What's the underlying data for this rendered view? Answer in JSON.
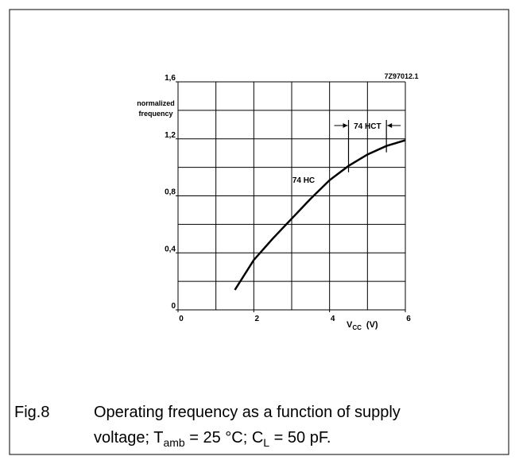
{
  "chart_data": {
    "type": "line",
    "code": "7Z97012.1",
    "y_label_lines": [
      "normalized",
      "frequency"
    ],
    "x_label": {
      "main": "V",
      "sub": "CC",
      "unit": "(V)"
    },
    "x": [
      1.5,
      2,
      2.5,
      3,
      3.5,
      4,
      4.5,
      5,
      5.5,
      6
    ],
    "series": [
      {
        "name": "74 HC",
        "color": "#000000",
        "values": [
          0.14,
          0.35,
          0.5,
          0.64,
          0.78,
          0.91,
          1.01,
          1.09,
          1.15,
          1.19
        ]
      }
    ],
    "hct": {
      "name": "74 HCT",
      "range": [
        4.5,
        5.5
      ]
    },
    "xlim": [
      0,
      6
    ],
    "ylim": [
      0,
      1.6
    ],
    "xticks": [
      0,
      2,
      4,
      6
    ],
    "yticks": [
      0,
      {
        "value": 0.4,
        "label": "0,4"
      },
      {
        "value": 0.8,
        "label": "0,8"
      },
      {
        "value": 1.2,
        "label": "1,2"
      },
      {
        "value": 1.6,
        "label": "1,6"
      }
    ],
    "grid_step": {
      "x": 1,
      "y": 0.2
    },
    "grid": true,
    "caption": {
      "number": "Fig.8",
      "line1": "Operating frequency as a function of supply",
      "line2": [
        "voltage; T",
        "amb",
        " = 25 °C; C",
        "L",
        " = 50 pF."
      ]
    }
  }
}
